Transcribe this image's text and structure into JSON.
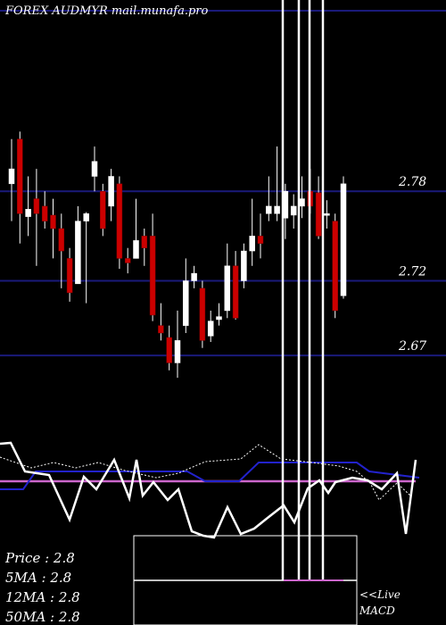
{
  "chart_data": {
    "type": "candlestick",
    "title": "FOREX AUDMYR mail.munafa.pro",
    "y_ticks": [
      2.78,
      2.72,
      2.67
    ],
    "ylim": [
      2.615,
      2.895
    ],
    "colors": {
      "up": "#ffffff",
      "down": "#cc0000",
      "gridline": "#1a1a7a",
      "background": "#000000",
      "ma_purple": "#cc66cc",
      "ma_blue": "#2222cc"
    },
    "candles": [
      {
        "o": 2.785,
        "h": 2.815,
        "l": 2.76,
        "c": 2.795
      },
      {
        "o": 2.815,
        "h": 2.82,
        "l": 2.745,
        "c": 2.765
      },
      {
        "o": 2.763,
        "h": 2.79,
        "l": 2.75,
        "c": 2.768
      },
      {
        "o": 2.775,
        "h": 2.795,
        "l": 2.73,
        "c": 2.765
      },
      {
        "o": 2.77,
        "h": 2.78,
        "l": 2.755,
        "c": 2.76
      },
      {
        "o": 2.764,
        "h": 2.775,
        "l": 2.735,
        "c": 2.755
      },
      {
        "o": 2.755,
        "h": 2.765,
        "l": 2.715,
        "c": 2.74
      },
      {
        "o": 2.735,
        "h": 2.742,
        "l": 2.706,
        "c": 2.712
      },
      {
        "o": 2.718,
        "h": 2.77,
        "l": 2.718,
        "c": 2.76
      },
      {
        "o": 2.76,
        "h": 2.766,
        "l": 2.705,
        "c": 2.765
      },
      {
        "o": 2.79,
        "h": 2.81,
        "l": 2.78,
        "c": 2.8
      },
      {
        "o": 2.78,
        "h": 2.785,
        "l": 2.75,
        "c": 2.755
      },
      {
        "o": 2.77,
        "h": 2.795,
        "l": 2.76,
        "c": 2.79
      },
      {
        "o": 2.785,
        "h": 2.79,
        "l": 2.728,
        "c": 2.735
      },
      {
        "o": 2.735,
        "h": 2.742,
        "l": 2.725,
        "c": 2.732
      },
      {
        "o": 2.735,
        "h": 2.775,
        "l": 2.735,
        "c": 2.747
      },
      {
        "o": 2.75,
        "h": 2.755,
        "l": 2.73,
        "c": 2.742
      },
      {
        "o": 2.75,
        "h": 2.765,
        "l": 2.693,
        "c": 2.697
      },
      {
        "o": 2.69,
        "h": 2.705,
        "l": 2.68,
        "c": 2.685
      },
      {
        "o": 2.682,
        "h": 2.69,
        "l": 2.66,
        "c": 2.665
      },
      {
        "o": 2.665,
        "h": 2.7,
        "l": 2.655,
        "c": 2.68
      },
      {
        "o": 2.69,
        "h": 2.735,
        "l": 2.685,
        "c": 2.72
      },
      {
        "o": 2.72,
        "h": 2.73,
        "l": 2.715,
        "c": 2.725
      },
      {
        "o": 2.715,
        "h": 2.72,
        "l": 2.675,
        "c": 2.68
      },
      {
        "o": 2.683,
        "h": 2.7,
        "l": 2.679,
        "c": 2.693
      },
      {
        "o": 2.694,
        "h": 2.705,
        "l": 2.69,
        "c": 2.696
      },
      {
        "o": 2.7,
        "h": 2.745,
        "l": 2.695,
        "c": 2.73
      },
      {
        "o": 2.73,
        "h": 2.74,
        "l": 2.694,
        "c": 2.695
      },
      {
        "o": 2.72,
        "h": 2.745,
        "l": 2.715,
        "c": 2.74
      },
      {
        "o": 2.74,
        "h": 2.775,
        "l": 2.73,
        "c": 2.75
      },
      {
        "o": 2.75,
        "h": 2.765,
        "l": 2.735,
        "c": 2.745
      },
      {
        "o": 2.765,
        "h": 2.79,
        "l": 2.76,
        "c": 2.77
      },
      {
        "o": 2.765,
        "h": 2.81,
        "l": 2.76,
        "c": 2.77
      },
      {
        "o": 2.762,
        "h": 2.785,
        "l": 2.748,
        "c": 2.78
      },
      {
        "o": 2.764,
        "h": 2.778,
        "l": 2.755,
        "c": 2.77
      },
      {
        "o": 2.77,
        "h": 2.79,
        "l": 2.762,
        "c": 2.775
      },
      {
        "o": 2.78,
        "h": 2.795,
        "l": 2.765,
        "c": 2.77
      },
      {
        "o": 2.779,
        "h": 2.79,
        "l": 2.748,
        "c": 2.75
      },
      {
        "o": 2.765,
        "h": 2.774,
        "l": 2.755,
        "c": 2.765
      },
      {
        "o": 2.76,
        "h": 2.765,
        "l": 2.695,
        "c": 2.7
      },
      {
        "o": 2.71,
        "h": 2.79,
        "l": 2.708,
        "c": 2.785
      }
    ],
    "stats": [
      {
        "label": "Price",
        "value": "2.8"
      },
      {
        "label": "5MA",
        "value": "2.8"
      },
      {
        "label": "12MA",
        "value": "2.8"
      },
      {
        "label": "50MA",
        "value": "2.8"
      }
    ],
    "live_label": "<<Live",
    "macd_label": "MACD"
  }
}
